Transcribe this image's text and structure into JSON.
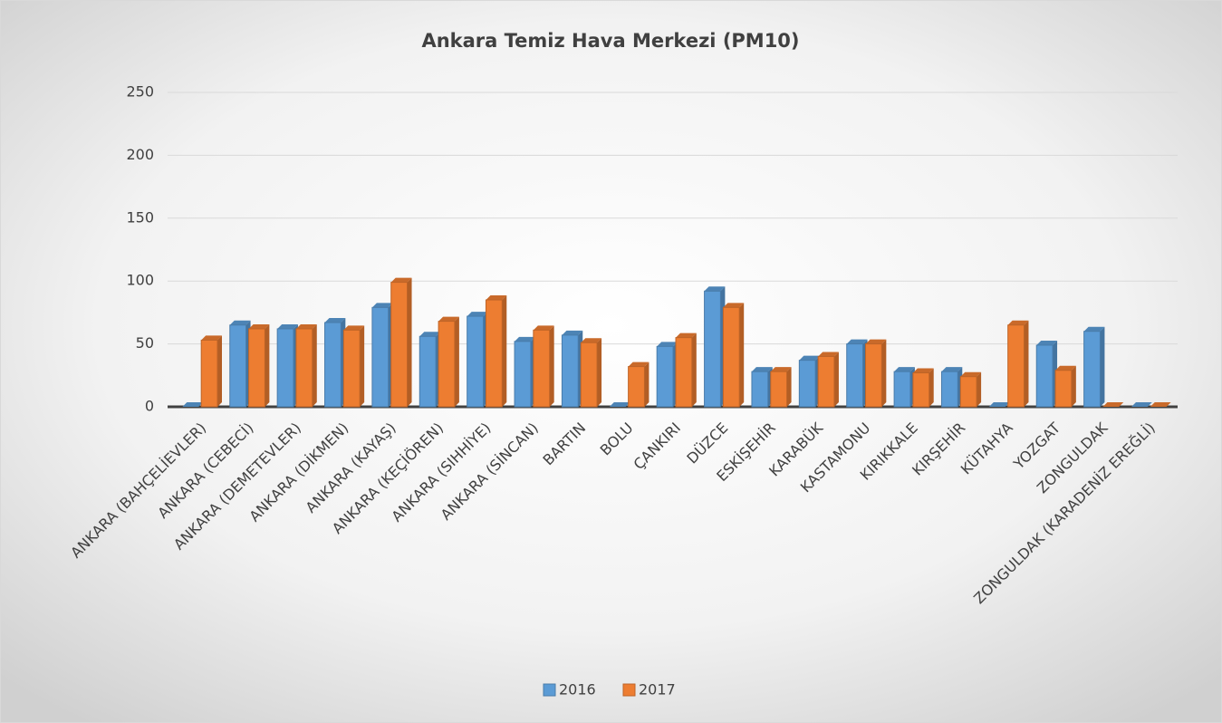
{
  "chart_data": {
    "type": "bar",
    "title": "Ankara Temiz Hava Merkezi (PM10)",
    "categories": [
      "ANKARA (BAHÇELİEVLER)",
      "ANKARA (CEBECİ)",
      "ANKARA (DEMETEVLER)",
      "ANKARA (DİKMEN)",
      "ANKARA (KAYAŞ)",
      "ANKARA (KEÇİÖREN)",
      "ANKARA (SIHHİYE)",
      "ANKARA (SİNCAN)",
      "BARTIN",
      "BOLU",
      "ÇANKIRI",
      "DÜZCE",
      "ESKİŞEHİR",
      "KARABÜK",
      "KASTAMONU",
      "KIRIKKALE",
      "KIRŞEHİR",
      "KÜTAHYA",
      "YOZGAT",
      "ZONGULDAK",
      "ZONGULDAK (KARADENİZ EREĞLİ)"
    ],
    "series": [
      {
        "name": "2016",
        "color": "#5b9bd5",
        "values": [
          0,
          65,
          62,
          67,
          79,
          56,
          72,
          52,
          57,
          0,
          48,
          92,
          28,
          37,
          50,
          28,
          28,
          0,
          49,
          60,
          0
        ]
      },
      {
        "name": "2017",
        "color": "#ed7d31",
        "values": [
          53,
          62,
          62,
          61,
          99,
          68,
          85,
          61,
          51,
          32,
          55,
          79,
          28,
          40,
          50,
          27,
          24,
          65,
          29,
          0,
          0
        ]
      }
    ],
    "ylim": [
      0,
      250
    ],
    "yticks": [
      0,
      50,
      100,
      150,
      200,
      250
    ],
    "grid": true,
    "legend": "bottom"
  }
}
